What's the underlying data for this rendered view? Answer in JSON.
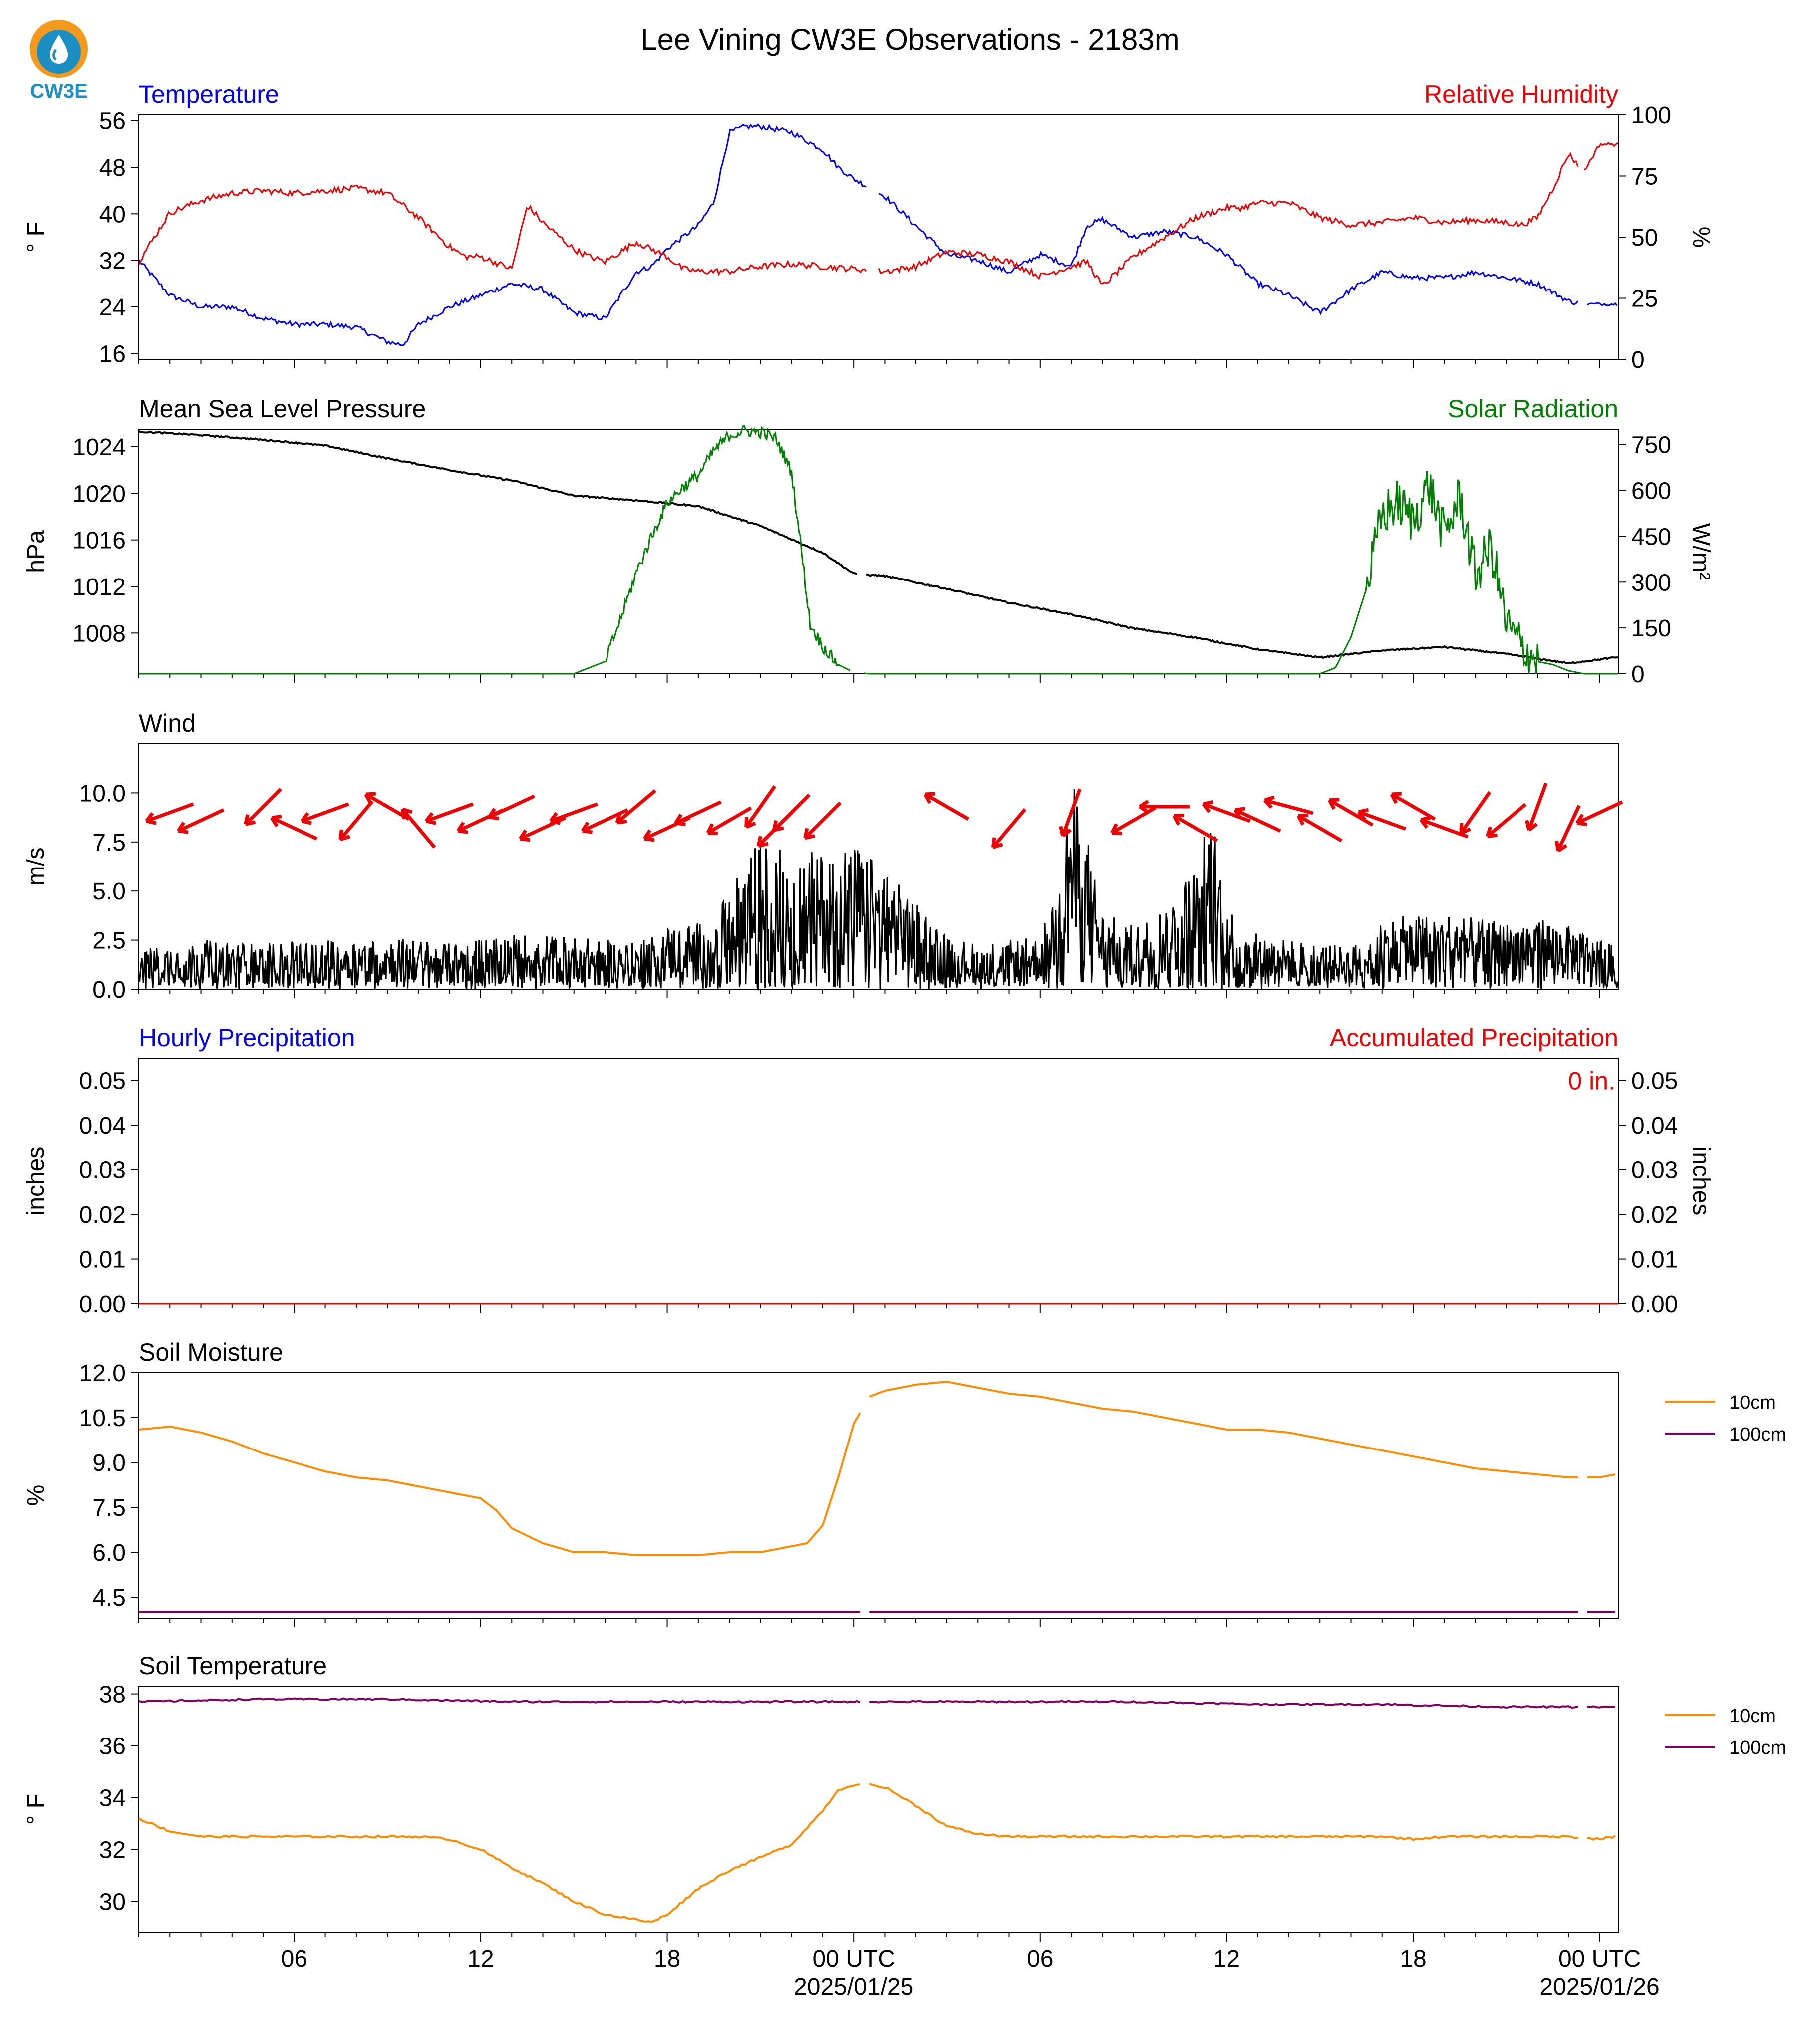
{
  "page_title": "Lee Vining CW3E Observations - 2183m",
  "logo": {
    "text": "CW3E",
    "icon": "cw3e-water-drop-logo",
    "colors": [
      "#f39a1e",
      "#1b8fc4"
    ]
  },
  "x_axis": {
    "hours_total": 47.6,
    "major_ticks": [
      {
        "hour": 5,
        "label": "06",
        "sub": ""
      },
      {
        "hour": 11,
        "label": "12",
        "sub": ""
      },
      {
        "hour": 17,
        "label": "18",
        "sub": ""
      },
      {
        "hour": 23,
        "label": "00 UTC",
        "sub": "2025/01/25"
      },
      {
        "hour": 29,
        "label": "06",
        "sub": ""
      },
      {
        "hour": 35,
        "label": "12",
        "sub": ""
      },
      {
        "hour": 41,
        "label": "18",
        "sub": ""
      },
      {
        "hour": 47,
        "label": "00 UTC",
        "sub": "2025/01/26"
      }
    ]
  },
  "colors": {
    "temp": "#0000ee",
    "rh": "#ee0000",
    "pressure": "#000000",
    "solar": "#008000",
    "wind": "#000000",
    "wind_arrow": "#ee0000",
    "soil_10cm": "#ff8c00",
    "soil_100cm": "#800060"
  },
  "panels": {
    "temp_rh": {
      "title_left": "Temperature",
      "title_right": "Relative Humidity",
      "ylabel_left": "° F",
      "ylabel_right": "%"
    },
    "pressure_solar": {
      "title_left": "Mean Sea Level Pressure",
      "title_right": "Solar Radiation",
      "ylabel_left": "hPa",
      "ylabel_right": "W/m²"
    },
    "wind": {
      "title_left": "Wind",
      "ylabel_left": "m/s"
    },
    "precip": {
      "title_left": "Hourly Precipitation",
      "title_right": "Accumulated Precipitation",
      "ylabel_left": "inches",
      "ylabel_right": "inches",
      "annotation": "0 in."
    },
    "soil_moisture": {
      "title_left": "Soil Moisture",
      "ylabel_left": "%",
      "legend": [
        "10cm",
        "100cm"
      ]
    },
    "soil_temp": {
      "title_left": "Soil Temperature",
      "ylabel_left": "° F",
      "legend": [
        "10cm",
        "100cm"
      ]
    }
  },
  "chart_data": [
    {
      "type": "line",
      "title": "Temperature / Relative Humidity",
      "x_units": "hours since start",
      "left_axis": {
        "label": "° F",
        "ylim": [
          15,
          57
        ],
        "ticks": [
          16,
          24,
          32,
          40,
          48,
          56
        ]
      },
      "right_axis": {
        "label": "%",
        "ylim": [
          0,
          100
        ],
        "ticks": [
          0,
          25,
          50,
          75,
          100
        ]
      },
      "series": [
        {
          "name": "Temperature",
          "axis": "left",
          "x": [
            0,
            1,
            2,
            3,
            4,
            5,
            6,
            7,
            8,
            8.5,
            9,
            10,
            11,
            12,
            13,
            14,
            15,
            16,
            16.5,
            17,
            18,
            18.5,
            19,
            19.5,
            20,
            21,
            22,
            22.5,
            23,
            24,
            25,
            26,
            27,
            28,
            29,
            30,
            30.5,
            31,
            32,
            33,
            34,
            35,
            36,
            37,
            38,
            39,
            40,
            41,
            42,
            43,
            44,
            45,
            46,
            46.5
          ],
          "values": [
            32,
            26,
            24,
            24,
            22,
            21,
            21,
            20.5,
            18,
            17.5,
            21,
            24,
            26,
            28,
            27,
            23,
            22,
            30,
            31,
            34,
            38,
            42,
            54,
            55,
            55,
            54,
            51,
            48,
            46,
            43,
            38,
            33,
            32,
            30,
            33,
            31,
            38,
            39,
            36,
            37,
            36,
            33,
            28,
            26,
            23,
            27,
            30,
            29,
            29,
            30,
            29,
            28,
            25,
            24.5
          ]
        },
        {
          "name": "Relative Humidity",
          "axis": "right",
          "x": [
            0,
            1,
            2,
            3,
            4,
            5,
            6,
            7,
            8,
            9,
            10,
            10.5,
            11,
            12,
            12.5,
            13,
            14,
            14.5,
            15,
            16,
            17,
            17.5,
            18,
            19,
            20,
            21,
            22,
            23,
            24,
            25,
            26,
            27,
            28,
            29,
            30,
            30.5,
            31,
            32,
            33,
            34,
            35,
            35.5,
            36,
            37,
            38,
            39,
            40,
            41,
            42,
            43,
            44,
            44.5,
            45,
            45.5,
            46,
            46.5,
            47,
            47.5
          ],
          "values": [
            40,
            60,
            65,
            68,
            69,
            68,
            69,
            70,
            68,
            58,
            46,
            42,
            42,
            37,
            63,
            56,
            45,
            42,
            40,
            48,
            42,
            37,
            36,
            36,
            38,
            39,
            38,
            37,
            36,
            38,
            44,
            43,
            40,
            34,
            38,
            40,
            30,
            42,
            50,
            58,
            62,
            62,
            64,
            64,
            58,
            55,
            56,
            58,
            56,
            57,
            56,
            55,
            58,
            70,
            84,
            77,
            88,
            88
          ]
        }
      ]
    },
    {
      "type": "line",
      "title": "Mean Sea Level Pressure / Solar Radiation",
      "left_axis": {
        "label": "hPa",
        "ylim": [
          1004.5,
          1025.5
        ],
        "ticks": [
          1008,
          1012,
          1016,
          1020,
          1024
        ]
      },
      "right_axis": {
        "label": "W/m²",
        "ylim": [
          0,
          800
        ],
        "ticks": [
          0,
          150,
          300,
          450,
          600,
          750
        ]
      },
      "series": [
        {
          "name": "Mean Sea Level Pressure",
          "axis": "left",
          "x": [
            0,
            2,
            4,
            6,
            8,
            10,
            12,
            14,
            16,
            18,
            20,
            22,
            23,
            24,
            26,
            28,
            30,
            32,
            34,
            36,
            38,
            40,
            42,
            44,
            46,
            47.5
          ],
          "values": [
            1025.3,
            1025.0,
            1024.6,
            1024.1,
            1023.0,
            1022.0,
            1021.1,
            1019.8,
            1019.4,
            1018.9,
            1017.2,
            1014.9,
            1013.1,
            1012.9,
            1011.8,
            1010.6,
            1009.6,
            1008.4,
            1007.6,
            1006.6,
            1005.9,
            1006.5,
            1006.8,
            1006.2,
            1005.4,
            1005.9
          ]
        },
        {
          "name": "Solar Radiation",
          "axis": "right",
          "x": [
            0,
            13,
            14,
            15,
            15.5,
            16,
            16.5,
            17,
            17.5,
            18,
            18.5,
            19,
            19.5,
            20,
            20.5,
            21,
            21.3,
            21.6,
            22,
            22.5,
            23,
            23.5,
            24,
            24.5,
            25,
            30,
            37,
            38,
            38.5,
            39,
            39.5,
            40,
            40.5,
            41,
            41.5,
            42,
            42.5,
            43,
            43.5,
            44,
            44.5,
            45,
            45.5,
            46,
            46.5,
            47,
            47.5
          ],
          "values": [
            0,
            0,
            0,
            40,
            180,
            330,
            450,
            560,
            610,
            650,
            730,
            780,
            795,
            790,
            770,
            660,
            420,
            160,
            90,
            30,
            5,
            0,
            0,
            0,
            0,
            0,
            0,
            0,
            20,
            120,
            280,
            520,
            560,
            500,
            620,
            450,
            580,
            320,
            420,
            160,
            90,
            40,
            30,
            10,
            0,
            0,
            0
          ]
        }
      ]
    },
    {
      "type": "line",
      "title": "Wind",
      "left_axis": {
        "label": "m/s",
        "ylim": [
          0,
          12.5
        ],
        "ticks": [
          0.0,
          2.5,
          5.0,
          7.5,
          10.0
        ]
      },
      "series": [
        {
          "name": "Wind speed",
          "x": [
            0,
            2,
            4,
            6,
            8,
            10,
            12,
            14,
            16,
            17,
            18,
            19,
            19.5,
            20,
            21,
            22,
            22.5,
            23,
            24,
            25,
            26,
            27,
            28,
            29,
            29.5,
            30,
            30.5,
            31,
            32,
            33,
            34,
            34.5,
            35,
            35.5,
            36,
            37,
            38,
            39,
            40,
            41,
            42,
            43,
            44,
            45,
            46,
            47,
            47.5
          ],
          "values": [
            1.2,
            1.4,
            1.3,
            1.4,
            1.5,
            1.3,
            1.6,
            1.5,
            1.3,
            1.8,
            1.9,
            2.6,
            3.8,
            4.2,
            4.0,
            3.9,
            4.1,
            4.2,
            3.4,
            2.5,
            1.5,
            1.3,
            1.4,
            1.5,
            3.0,
            6.0,
            4.5,
            2.2,
            1.8,
            2.4,
            3.6,
            5.2,
            2.8,
            1.4,
            1.6,
            1.4,
            1.3,
            1.2,
            2.0,
            2.1,
            2.2,
            2.0,
            1.9,
            2.1,
            1.8,
            1.5,
            1.2
          ]
        },
        {
          "name": "Wind direction",
          "x": [
            1,
            2,
            4,
            5,
            6,
            7,
            8,
            9,
            10,
            11,
            12,
            13,
            14,
            15,
            16,
            17,
            18,
            19,
            20,
            20.5,
            21,
            22,
            26,
            28,
            30,
            32,
            33,
            34,
            35,
            36,
            37,
            38,
            39,
            40,
            41,
            42,
            43,
            44,
            45,
            46,
            47
          ],
          "values": [
            250,
            245,
            225,
            295,
            250,
            220,
            300,
            320,
            250,
            245,
            245,
            245,
            250,
            245,
            230,
            245,
            245,
            240,
            215,
            225,
            225,
            225,
            300,
            220,
            200,
            240,
            270,
            300,
            290,
            295,
            285,
            300,
            300,
            290,
            300,
            290,
            215,
            230,
            200,
            205,
            245
          ]
        }
      ]
    },
    {
      "type": "line",
      "title": "Hourly Precipitation / Accumulated Precipitation",
      "left_axis": {
        "label": "inches",
        "ylim": [
          0,
          0.055
        ],
        "ticks": [
          0.0,
          0.01,
          0.02,
          0.03,
          0.04,
          0.05
        ]
      },
      "right_axis": {
        "label": "inches",
        "ylim": [
          0,
          0.055
        ],
        "ticks": [
          0.0,
          0.01,
          0.02,
          0.03,
          0.04,
          0.05
        ]
      },
      "series": [
        {
          "name": "Hourly Precipitation",
          "x": [
            0,
            47.6
          ],
          "values": [
            0,
            0
          ]
        },
        {
          "name": "Accumulated Precipitation",
          "x": [
            0,
            47.6
          ],
          "values": [
            0,
            0
          ]
        }
      ],
      "annotation": "0 in."
    },
    {
      "type": "line",
      "title": "Soil Moisture",
      "left_axis": {
        "label": "%",
        "ylim": [
          3.8,
          12.0
        ],
        "ticks": [
          4.5,
          6.0,
          7.5,
          9.0,
          10.5,
          12.0
        ]
      },
      "series": [
        {
          "name": "10cm",
          "x": [
            0,
            1,
            2,
            3,
            4,
            5,
            6,
            7,
            8,
            9,
            10,
            11,
            11.5,
            12,
            13,
            14,
            15,
            16,
            17,
            18,
            19,
            20,
            21,
            21.5,
            22,
            22.5,
            23,
            23.5,
            24,
            25,
            26,
            27,
            28,
            29,
            30,
            31,
            32,
            33,
            34,
            35,
            36,
            37,
            38,
            39,
            40,
            41,
            42,
            43,
            44,
            45,
            46,
            47,
            47.5
          ],
          "values": [
            10.1,
            10.2,
            10.0,
            9.7,
            9.3,
            9.0,
            8.7,
            8.5,
            8.4,
            8.2,
            8.0,
            7.8,
            7.4,
            6.8,
            6.3,
            6.0,
            6.0,
            5.9,
            5.9,
            5.9,
            6.0,
            6.0,
            6.2,
            6.3,
            6.9,
            8.5,
            10.3,
            11.2,
            11.4,
            11.6,
            11.7,
            11.5,
            11.3,
            11.2,
            11.0,
            10.8,
            10.7,
            10.5,
            10.3,
            10.1,
            10.1,
            10.0,
            9.8,
            9.6,
            9.4,
            9.2,
            9.0,
            8.8,
            8.7,
            8.6,
            8.5,
            8.5,
            8.6
          ]
        },
        {
          "name": "100cm",
          "x": [
            0,
            47.5
          ],
          "values": [
            4.0,
            4.0
          ]
        }
      ]
    },
    {
      "type": "line",
      "title": "Soil Temperature",
      "left_axis": {
        "label": "° F",
        "ylim": [
          28.8,
          38.3
        ],
        "ticks": [
          30,
          32,
          34,
          36,
          38
        ]
      },
      "series": [
        {
          "name": "10cm",
          "x": [
            0,
            1,
            2,
            3,
            4,
            5,
            6,
            7,
            8,
            9,
            10,
            11,
            12,
            13,
            14,
            15,
            16,
            16.5,
            17,
            18,
            19,
            20,
            21,
            22,
            22.5,
            23,
            23.5,
            24,
            25,
            26,
            27,
            28,
            29,
            30,
            31,
            32,
            33,
            34,
            35,
            36,
            37,
            38,
            39,
            40,
            41,
            42,
            43,
            44,
            45,
            46,
            47,
            47.5
          ],
          "values": [
            33.2,
            32.7,
            32.5,
            32.5,
            32.5,
            32.5,
            32.5,
            32.5,
            32.5,
            32.5,
            32.4,
            32.0,
            31.3,
            30.7,
            30.0,
            29.5,
            29.3,
            29.2,
            29.5,
            30.5,
            31.2,
            31.7,
            32.2,
            33.5,
            34.3,
            34.5,
            34.5,
            34.4,
            33.7,
            32.9,
            32.6,
            32.5,
            32.5,
            32.5,
            32.5,
            32.5,
            32.5,
            32.5,
            32.5,
            32.5,
            32.5,
            32.5,
            32.5,
            32.5,
            32.4,
            32.5,
            32.5,
            32.5,
            32.5,
            32.5,
            32.4,
            32.5
          ]
        },
        {
          "name": "100cm",
          "x": [
            0,
            4,
            8,
            12,
            16,
            20,
            24,
            28,
            32,
            36,
            40,
            44,
            47.5
          ],
          "values": [
            37.7,
            37.8,
            37.8,
            37.7,
            37.7,
            37.7,
            37.7,
            37.7,
            37.7,
            37.6,
            37.6,
            37.5,
            37.5
          ]
        }
      ]
    }
  ]
}
